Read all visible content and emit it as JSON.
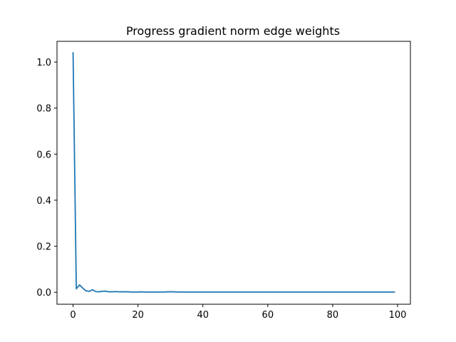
{
  "chart_data": {
    "type": "line",
    "title": "Progress gradient norm edge weights",
    "xlabel": "",
    "ylabel": "",
    "xlim": [
      -4.95,
      103.95
    ],
    "ylim": [
      -0.052,
      1.09
    ],
    "x_ticks": [
      0,
      20,
      40,
      60,
      80,
      100
    ],
    "y_ticks": [
      0.0,
      0.2,
      0.4,
      0.6,
      0.8,
      1.0
    ],
    "x_tick_labels": [
      "0",
      "20",
      "40",
      "60",
      "80",
      "100"
    ],
    "y_tick_labels": [
      "0.0",
      "0.2",
      "0.4",
      "0.6",
      "0.8",
      "1.0"
    ],
    "grid": false,
    "series": [
      {
        "color": "#1f77b4",
        "x": [
          0,
          1,
          2,
          3,
          4,
          5,
          6,
          7,
          8,
          9,
          10,
          11,
          12,
          13,
          14,
          15,
          16,
          17,
          18,
          19,
          20,
          21,
          22,
          23,
          24,
          25,
          26,
          27,
          28,
          29,
          30,
          31,
          32,
          33,
          34,
          35,
          36,
          37,
          38,
          39,
          40,
          41,
          42,
          43,
          44,
          45,
          46,
          47,
          48,
          49,
          50,
          51,
          52,
          53,
          54,
          55,
          56,
          57,
          58,
          59,
          60,
          61,
          62,
          63,
          64,
          65,
          66,
          67,
          68,
          69,
          70,
          71,
          72,
          73,
          74,
          75,
          76,
          77,
          78,
          79,
          80,
          81,
          82,
          83,
          84,
          85,
          86,
          87,
          88,
          89,
          90,
          91,
          92,
          93,
          94,
          95,
          96,
          97,
          98,
          99
        ],
        "values": [
          1.04,
          0.015,
          0.032,
          0.018,
          0.006,
          0.004,
          0.011,
          0.003,
          0.002,
          0.004,
          0.005,
          0.002,
          0.002,
          0.003,
          0.002,
          0.002,
          0.002,
          0.002,
          0.001,
          0.001,
          0.001,
          0.002,
          0.001,
          0.001,
          0.001,
          0.001,
          0.001,
          0.001,
          0.001,
          0.002,
          0.002,
          0.002,
          0.001,
          0.001,
          0.001,
          0.001,
          0.001,
          0.001,
          0.001,
          0.001,
          0.001,
          0.001,
          0.001,
          0.001,
          0.001,
          0.001,
          0.001,
          0.001,
          0.001,
          0.001,
          0.001,
          0.001,
          0.001,
          0.001,
          0.001,
          0.001,
          0.001,
          0.001,
          0.001,
          0.001,
          0.001,
          0.001,
          0.001,
          0.001,
          0.001,
          0.001,
          0.001,
          0.001,
          0.001,
          0.001,
          0.001,
          0.001,
          0.001,
          0.001,
          0.001,
          0.001,
          0.001,
          0.001,
          0.001,
          0.001,
          0.001,
          0.001,
          0.001,
          0.001,
          0.001,
          0.001,
          0.001,
          0.001,
          0.001,
          0.001,
          0.001,
          0.001,
          0.001,
          0.001,
          0.001,
          0.001,
          0.001,
          0.001,
          0.001,
          0.001
        ]
      }
    ]
  }
}
